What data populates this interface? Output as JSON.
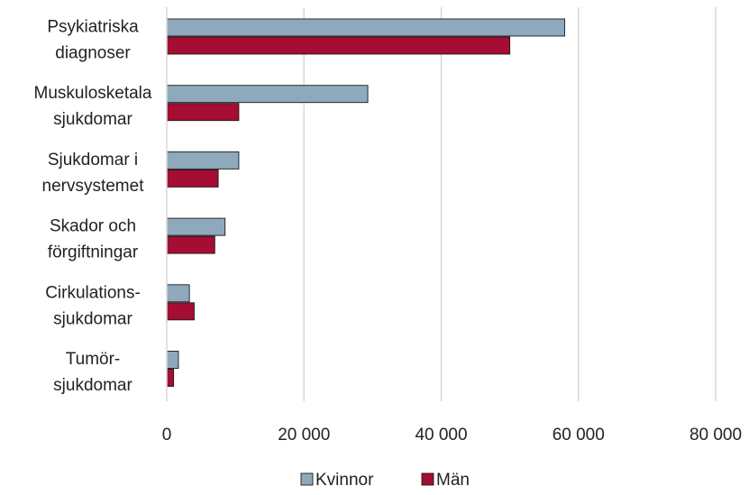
{
  "chart_data": {
    "type": "bar",
    "orientation": "horizontal",
    "categories": [
      [
        "Psykiatriska",
        "diagnoser"
      ],
      [
        "Muskulosketala",
        "sjukdomar"
      ],
      [
        "Sjukdomar i",
        "nervsystemet"
      ],
      [
        "Skador och",
        "förgiftningar"
      ],
      [
        "Cirkulations-",
        "sjukdomar"
      ],
      [
        "Tumör-",
        "sjukdomar"
      ]
    ],
    "series": [
      {
        "name": "Kvinnor",
        "color": "#8FA9BC",
        "values": [
          58000,
          29300,
          10500,
          8500,
          3300,
          1700
        ]
      },
      {
        "name": "Män",
        "color": "#A50D32",
        "values": [
          50000,
          10500,
          7500,
          7000,
          4000,
          1000
        ]
      }
    ],
    "xlim": [
      0,
      80000
    ],
    "xticks": [
      0,
      20000,
      40000,
      60000,
      80000
    ],
    "xtick_labels": [
      "0",
      "20 000",
      "40 000",
      "60 000",
      "80 000"
    ],
    "grid": true,
    "legend_position": "bottom"
  }
}
